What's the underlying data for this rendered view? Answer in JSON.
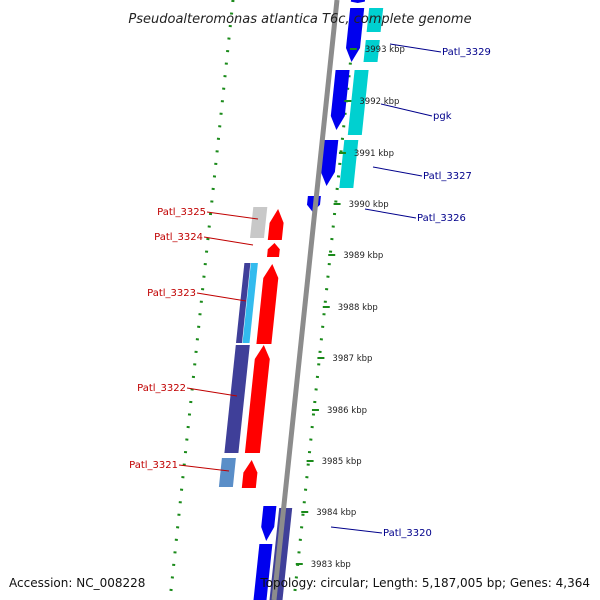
{
  "title": "Pseudoalteromonas atlantica T6c, complete genome",
  "accession": "Accession: NC_008228",
  "topology": "Topology: circular; Length: 5,187,005 bp; Genes: 4,364",
  "colors": {
    "backbone": "#8c8c8c",
    "tick": "#1a8a1a",
    "dots": "#1a8a1a",
    "forward_label": "#c00000",
    "reverse_label": "#00008b",
    "red": "#ff0000",
    "blue": "#0000ee",
    "cyan": "#00d0d0",
    "slate": "#3f3f99",
    "grey": "#c8c8c8",
    "steel": "#5a8ec8",
    "lightblue": "#33bbee"
  },
  "scale": [
    "3993 kbp",
    "3992 kbp",
    "3991 kbp",
    "3990 kbp",
    "3989 kbp",
    "3988 kbp",
    "3987 kbp",
    "3986 kbp",
    "3985 kbp",
    "3984 kbp",
    "3983 kbp"
  ],
  "genes_right": [
    {
      "name": "Patl_3329"
    },
    {
      "name": "pgk"
    },
    {
      "name": "Patl_3327"
    },
    {
      "name": "Patl_3326"
    },
    {
      "name": "Patl_3320"
    }
  ],
  "genes_left": [
    {
      "name": "Patl_3325"
    },
    {
      "name": "Patl_3324"
    },
    {
      "name": "Patl_3323"
    },
    {
      "name": "Patl_3322"
    },
    {
      "name": "Patl_3321"
    }
  ]
}
